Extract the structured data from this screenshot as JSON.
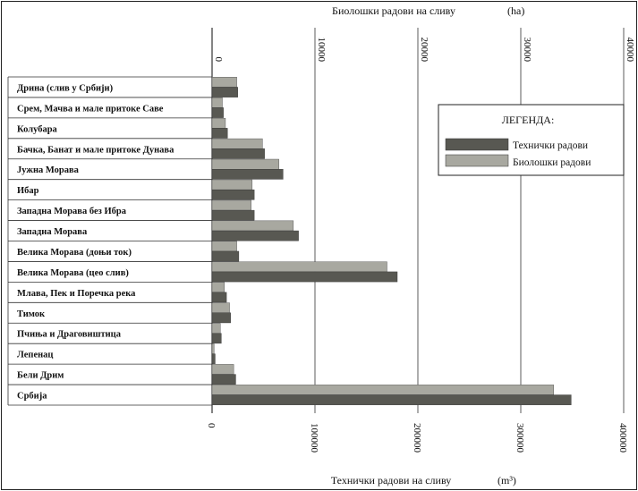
{
  "chart_data": {
    "type": "bar",
    "orientation": "horizontal",
    "categories": [
      "Дрина (слив у Србији)",
      "Срем, Мачва и мале притоке Саве",
      "Колубара",
      "Бачка, Банат и мале притоке Дунава",
      "Јужна Морава",
      "Ибар",
      "Западна Морава без Ибра",
      "Западна Морава",
      "Велика Морава (доњи ток)",
      "Велика Морава (цео слив)",
      "Млава, Пек и Поречка река",
      "Тимок",
      "Пчиња и Драговиштица",
      "Лепенац",
      "Бели Дрим",
      "Србија"
    ],
    "series": [
      {
        "name": "Биолошки радови",
        "unit": "ha",
        "axis": "top",
        "color": "#a8a8a0",
        "values": [
          2400,
          1000,
          1300,
          4900,
          6500,
          3900,
          3800,
          7900,
          2400,
          17000,
          1200,
          1700,
          800,
          200,
          2100,
          33200
        ]
      },
      {
        "name": "Технички радови",
        "unit": "m³",
        "axis": "bottom",
        "color": "#585852",
        "values": [
          25000,
          11000,
          15000,
          51000,
          69000,
          41000,
          41000,
          84000,
          26000,
          180000,
          14000,
          18000,
          9000,
          3000,
          23000,
          349000
        ]
      }
    ],
    "top_axis": {
      "title": "Биолошки радови на сливу",
      "unit": "(ha)",
      "range": [
        0,
        40000
      ],
      "ticks": [
        "0",
        "10000",
        "20000",
        "30000",
        "40000"
      ]
    },
    "bottom_axis": {
      "title": "Технички радови на сливу",
      "unit": "(m³)",
      "range": [
        0,
        400000
      ],
      "ticks": [
        "0",
        "100000",
        "200000",
        "300000",
        "400000"
      ]
    },
    "legend": {
      "title": "ЛЕГЕНДА:",
      "placement": "right",
      "items": [
        "Технички радови",
        "Биолошки радови"
      ]
    }
  }
}
